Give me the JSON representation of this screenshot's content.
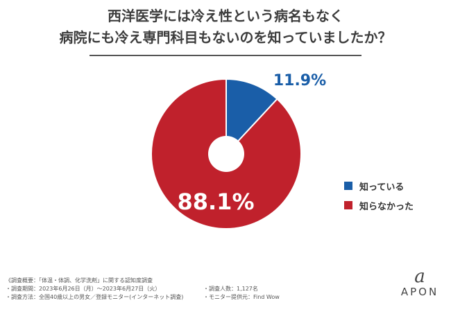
{
  "chart_data": {
    "type": "pie",
    "title_line1": "西洋医学には冷え性という病名もなく",
    "title_line2": "病院にも冷え専門科目もないのを知っていましたか？",
    "slices": [
      {
        "label": "知っている",
        "value": 11.9,
        "value_label": "11.9%",
        "color": "#1a5ea8"
      },
      {
        "label": "知らなかった",
        "value": 88.1,
        "value_label": "88.1%",
        "color": "#c0212c"
      }
    ],
    "donut_hole": true,
    "legend_position": "right"
  },
  "notes": {
    "heading": "《調査概要：「体温・体調、化学洗剤」に関する認知度調査",
    "period": "・調査期間：2023年6月26日（月）～2023年6月27日（火）",
    "respondents": "・調査人数：1,127名",
    "method": "・調査方法：全国40歳以上の男女／登録モニター(インターネット調査)",
    "provider": "・モニター提供元：Find Wow"
  },
  "logo": {
    "mark": "a",
    "text": "APON"
  }
}
